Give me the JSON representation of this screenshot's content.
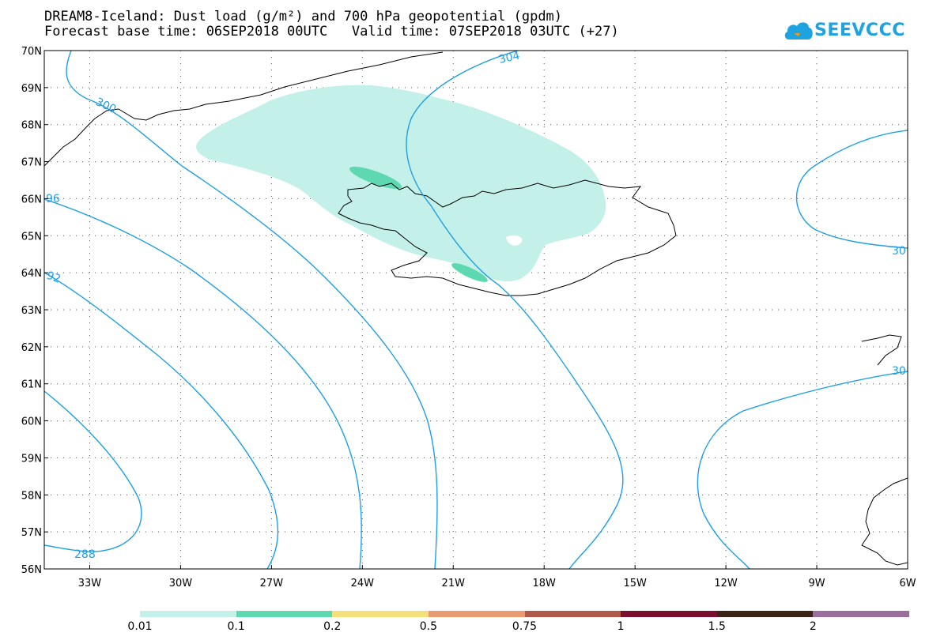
{
  "title": {
    "line1": "DREAM8-Iceland: Dust load (g/m²) and 700 hPa geopotential (gpdm)",
    "line2": "Forecast base time: 06SEP2018 00UTC   Valid time: 07SEP2018 03UTC (+27)"
  },
  "logo": {
    "text": "SEEVCCC",
    "icon": "cloud-icon",
    "color": "#1fa3e0"
  },
  "map": {
    "lon_range": [
      -34.5,
      -6
    ],
    "lat_range": [
      56,
      70
    ],
    "lat_labels": [
      "70N",
      "69N",
      "68N",
      "67N",
      "66N",
      "65N",
      "64N",
      "63N",
      "62N",
      "61N",
      "60N",
      "59N",
      "58N",
      "57N",
      "56N"
    ],
    "lon_labels": [
      "33W",
      "30W",
      "27W",
      "24W",
      "21W",
      "18W",
      "15W",
      "12W",
      "9W",
      "6W"
    ],
    "contour_color": "#1e9fe6",
    "coast_color": "#000000",
    "contour_labels": [
      "304",
      "300",
      "96",
      "92",
      "288",
      "30",
      "30"
    ]
  },
  "colorbar": {
    "labels": [
      "0.01",
      "0.1",
      "0.2",
      "0.5",
      "0.75",
      "1",
      "1.5",
      "2"
    ],
    "colors": [
      "#c3f0e8",
      "#5ed8b0",
      "#f4e07a",
      "#e89a70",
      "#b05a4a",
      "#7a0e2e",
      "#3a2416",
      "#9a6f9e"
    ]
  }
}
